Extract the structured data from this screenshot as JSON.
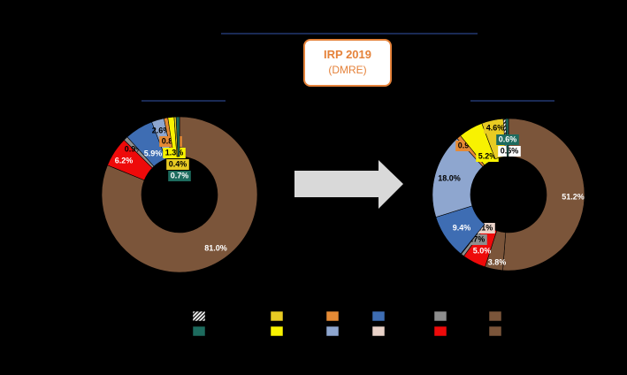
{
  "callout": {
    "title": "IRP 2019",
    "subtitle": "(DMRE)"
  },
  "colors": {
    "coal": "#7b553a",
    "nuclear": "#f5f5f5",
    "hydro": "#1d6b5e",
    "pumped_storage": "#e8cb23",
    "solar_pv": "#f8f201",
    "csp": "#e58a35",
    "wind": "#3e6db3",
    "wind_light": "#8ea6cf",
    "gas": "#8e8e8e",
    "gas_light": "#e9d2c8",
    "diesel": "#ee0a0a"
  },
  "chart_data": [
    {
      "type": "pie",
      "donut": true,
      "slices": [
        {
          "key": "coal",
          "value": 81.0,
          "label": "81.0%"
        },
        {
          "key": "diesel",
          "value": 6.2,
          "label": "6.2%"
        },
        {
          "key": "gas",
          "value": 0.9,
          "label": "0.9%"
        },
        {
          "key": "wind",
          "value": 5.9,
          "label": "5.9%"
        },
        {
          "key": "wind_light",
          "value": 2.6,
          "label": "2.6%"
        },
        {
          "key": "csp",
          "value": 0.8,
          "label": "0.8%"
        },
        {
          "key": "solar_pv",
          "value": 1.3,
          "label": "1.3%"
        },
        {
          "key": "pumped_storage",
          "value": 0.4,
          "label": "0.4%"
        },
        {
          "key": "hydro",
          "value": 0.7,
          "label": "0.7%"
        }
      ]
    },
    {
      "type": "pie",
      "donut": true,
      "slices": [
        {
          "key": "coal",
          "value": 51.2,
          "label": "51.2%"
        },
        {
          "key": "coal",
          "value": 3.8,
          "label": "3.8%"
        },
        {
          "key": "diesel",
          "value": 5.0,
          "label": "5.0%"
        },
        {
          "key": "gas",
          "value": 0.7,
          "label": "0.7%"
        },
        {
          "key": "gas_light",
          "value": 0.1,
          "label": "0.1%"
        },
        {
          "key": "wind",
          "value": 9.4,
          "label": "9.4%"
        },
        {
          "key": "wind_light",
          "value": 18.0,
          "label": "18.0%"
        },
        {
          "key": "csp",
          "value": 0.9,
          "label": "0.9%"
        },
        {
          "key": "solar_pv",
          "value": 5.2,
          "label": "5.2%"
        },
        {
          "key": "pumped_storage",
          "value": 4.6,
          "label": "4.6%"
        },
        {
          "key": "nuclear",
          "value": 0.5,
          "label": "0.5%"
        },
        {
          "key": "hydro",
          "value": 0.6,
          "label": "0.6%"
        }
      ]
    }
  ],
  "legend": [
    {
      "key": "nuclear",
      "hatched": true
    },
    {
      "key": "pumped_storage"
    },
    {
      "key": "csp"
    },
    {
      "key": "wind"
    },
    {
      "key": "gas"
    },
    {
      "key": "coal"
    },
    {
      "key": "hydro"
    },
    {
      "key": "solar_pv"
    },
    {
      "key": "wind_light"
    },
    {
      "key": "gas_light"
    },
    {
      "key": "diesel"
    },
    {
      "key": "coal"
    }
  ]
}
